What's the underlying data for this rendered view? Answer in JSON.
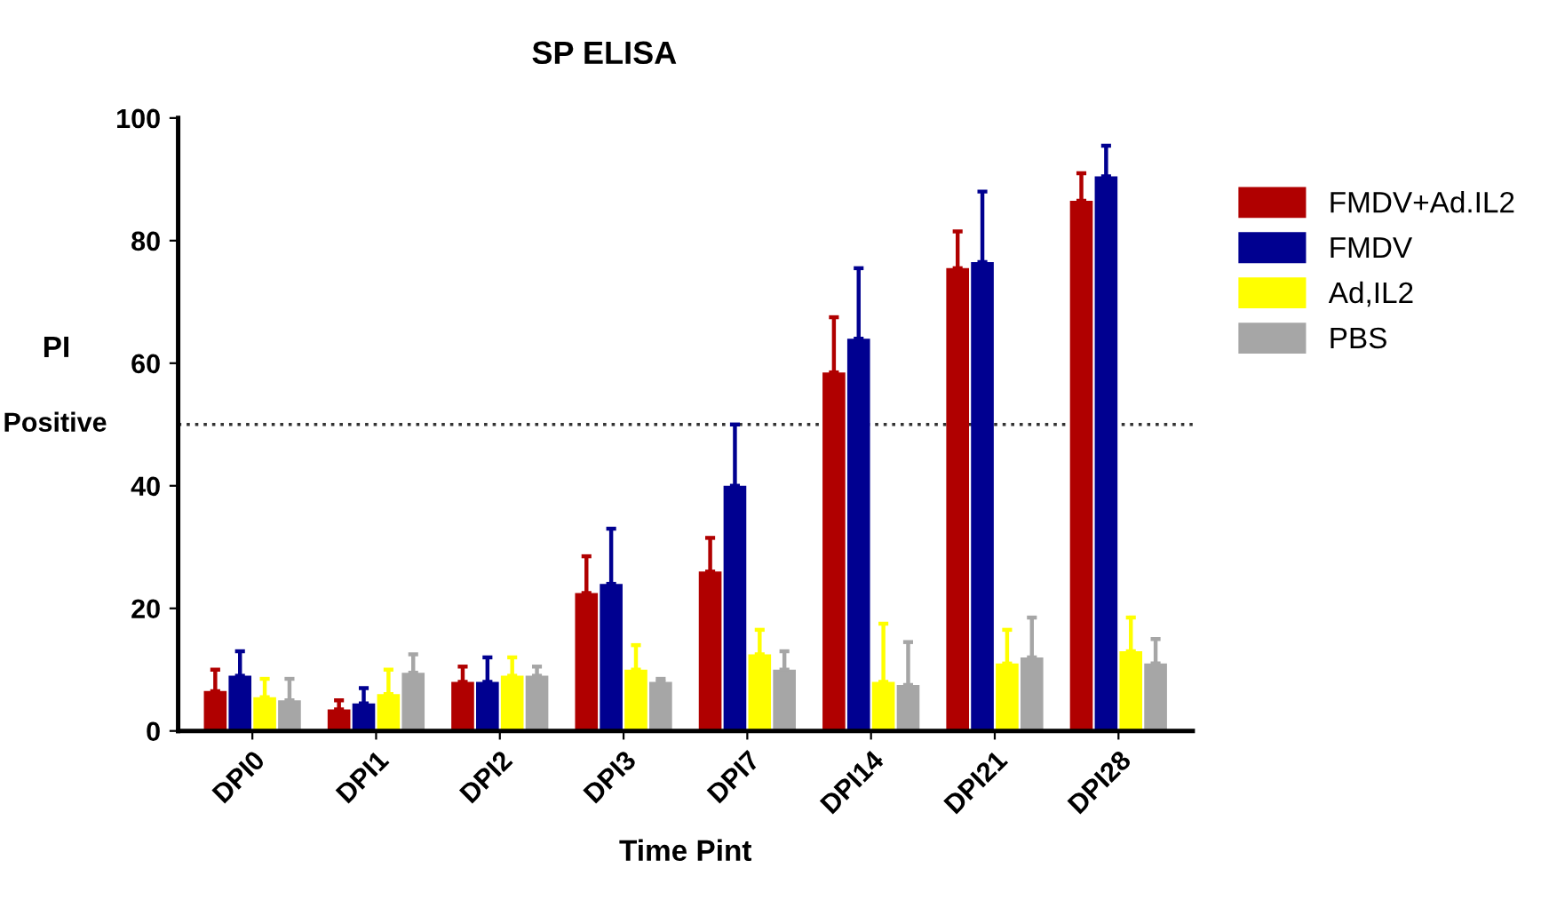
{
  "chart_data": {
    "type": "bar",
    "title": "SP ELISA",
    "xlabel": "Time Pint",
    "ylabel": "PI",
    "categories": [
      "DPI0",
      "DPI1",
      "DPI2",
      "DPI3",
      "DPI7",
      "DPI14",
      "DPI21",
      "DPI28"
    ],
    "series": [
      {
        "name": "FMDV+Ad.IL2",
        "color": "#b00000",
        "values": [
          6.5,
          3.5,
          8,
          22.5,
          26,
          58.5,
          75.5,
          86.5
        ],
        "errors": [
          [
            6.5,
            10
          ],
          [
            3.5,
            5
          ],
          [
            8,
            10.5
          ],
          [
            22.5,
            28.5
          ],
          [
            26,
            31.5
          ],
          [
            58.5,
            67.5
          ],
          [
            75.5,
            81.5
          ],
          [
            86.5,
            91
          ]
        ]
      },
      {
        "name": "FMDV",
        "color": "#000090",
        "values": [
          9,
          4.5,
          8,
          24,
          40,
          64,
          76.5,
          90.5
        ],
        "errors": [
          [
            9,
            13
          ],
          [
            4.5,
            7
          ],
          [
            8,
            12
          ],
          [
            24,
            33
          ],
          [
            40,
            50
          ],
          [
            64,
            75.5
          ],
          [
            76.5,
            88
          ],
          [
            90.5,
            95.5
          ]
        ]
      },
      {
        "name": "Ad,IL2",
        "color": "#ffff00",
        "values": [
          5.5,
          6,
          9,
          10,
          12.5,
          8,
          11,
          13
        ],
        "errors": [
          [
            5.5,
            8.5
          ],
          [
            6,
            10
          ],
          [
            9,
            12
          ],
          [
            10,
            14
          ],
          [
            12.5,
            16.5
          ],
          [
            8,
            17.5
          ],
          [
            11,
            16.5
          ],
          [
            13,
            18.5
          ]
        ]
      },
      {
        "name": "PBS",
        "color": "#a6a6a6",
        "values": [
          5,
          9.5,
          9,
          8,
          10,
          7.5,
          12,
          11
        ],
        "errors": [
          [
            5,
            8.5
          ],
          [
            9.5,
            12.5
          ],
          [
            9,
            10.5
          ],
          [
            8,
            8.5
          ],
          [
            10,
            13
          ],
          [
            7.5,
            14.5
          ],
          [
            12,
            18.5
          ],
          [
            11,
            15
          ]
        ]
      }
    ],
    "ylim": [
      0,
      100
    ],
    "yticks": [
      0,
      20,
      40,
      60,
      80,
      100
    ],
    "ref_lines": [
      {
        "axis": "y",
        "value": 50,
        "label": "Positive",
        "color": "#333333",
        "line_style": "dotted"
      }
    ],
    "grid": false,
    "legend": "right"
  }
}
